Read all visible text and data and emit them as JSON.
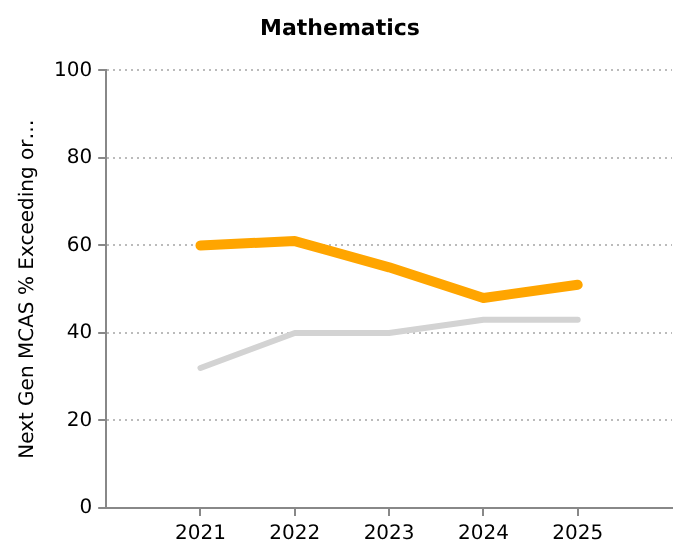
{
  "chart_data": {
    "type": "line",
    "title": "Mathematics",
    "ylabel": "Next Gen MCAS % Exceeding or…",
    "x": [
      2021,
      2022,
      2023,
      2024,
      2025
    ],
    "series": [
      {
        "color": "#ffa500",
        "values": [
          60,
          61,
          55,
          48,
          51
        ]
      },
      {
        "color": "#d3d3d3",
        "values": [
          32,
          40,
          40,
          43,
          43
        ]
      }
    ],
    "xlim": [
      2020,
      2026
    ],
    "xticks": [
      2021,
      2022,
      2023,
      2024,
      2025
    ],
    "ylim": [
      0,
      100
    ],
    "yticks": [
      0,
      20,
      40,
      60,
      80,
      100
    ],
    "grid": "y",
    "legend": false,
    "marker": "none",
    "line_style": "solid"
  }
}
